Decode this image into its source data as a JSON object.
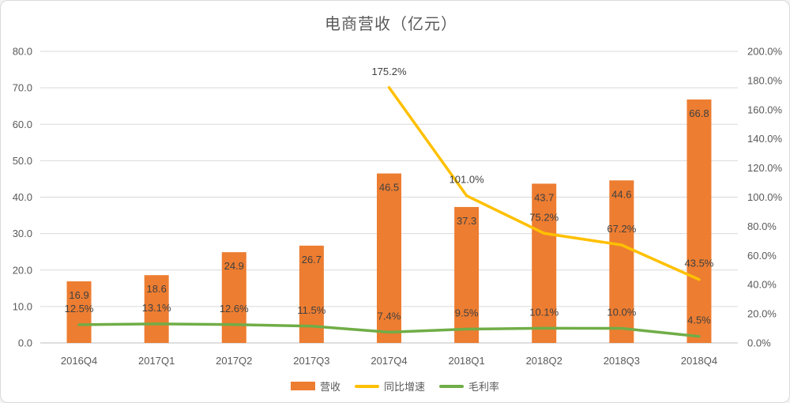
{
  "chart_data": {
    "type": "combo-bar-line",
    "title": "电商营收（亿元）",
    "categories": [
      "2016Q4",
      "2017Q1",
      "2017Q2",
      "2017Q3",
      "2017Q4",
      "2018Q1",
      "2018Q2",
      "2018Q3",
      "2018Q4"
    ],
    "series": [
      {
        "name": "营收",
        "type": "bar",
        "axis": "left",
        "color": "#ED7D31",
        "values": [
          16.9,
          18.6,
          24.9,
          26.7,
          46.5,
          37.3,
          43.7,
          44.6,
          66.8
        ],
        "labels": [
          "16.9",
          "18.6",
          "24.9",
          "26.7",
          "46.5",
          "37.3",
          "43.7",
          "44.6",
          "66.8"
        ]
      },
      {
        "name": "同比增速",
        "type": "line",
        "axis": "right",
        "color": "#FFC000",
        "values": [
          null,
          null,
          null,
          null,
          175.2,
          101.0,
          75.2,
          67.2,
          43.5
        ],
        "labels": [
          null,
          null,
          null,
          null,
          "175.2%",
          "101.0%",
          "75.2%",
          "67.2%",
          "43.5%"
        ]
      },
      {
        "name": "毛利率",
        "type": "line",
        "axis": "right",
        "color": "#70AD47",
        "values": [
          12.5,
          13.1,
          12.6,
          11.5,
          7.4,
          9.5,
          10.1,
          10.0,
          4.5
        ],
        "labels": [
          "12.5%",
          "13.1%",
          "12.6%",
          "11.5%",
          "7.4%",
          "9.5%",
          "10.1%",
          "10.0%",
          "4.5%"
        ]
      }
    ],
    "left_axis": {
      "min": 0,
      "max": 80,
      "step": 10,
      "tick_labels": [
        "0.0",
        "10.0",
        "20.0",
        "30.0",
        "40.0",
        "50.0",
        "60.0",
        "70.0",
        "80.0"
      ]
    },
    "right_axis": {
      "min": 0,
      "max": 200,
      "step": 20,
      "tick_labels": [
        "0.0%",
        "20.0%",
        "40.0%",
        "60.0%",
        "80.0%",
        "100.0%",
        "120.0%",
        "140.0%",
        "160.0%",
        "180.0%",
        "200.0%"
      ]
    },
    "grid": true,
    "legend_position": "bottom",
    "colors": {
      "text": "#595959",
      "data_label": "#404040",
      "gridline": "#D9D9D9",
      "axis_line": "#BFBFBF",
      "background": "#FFFFFF",
      "border": "#D9D9D9"
    }
  }
}
